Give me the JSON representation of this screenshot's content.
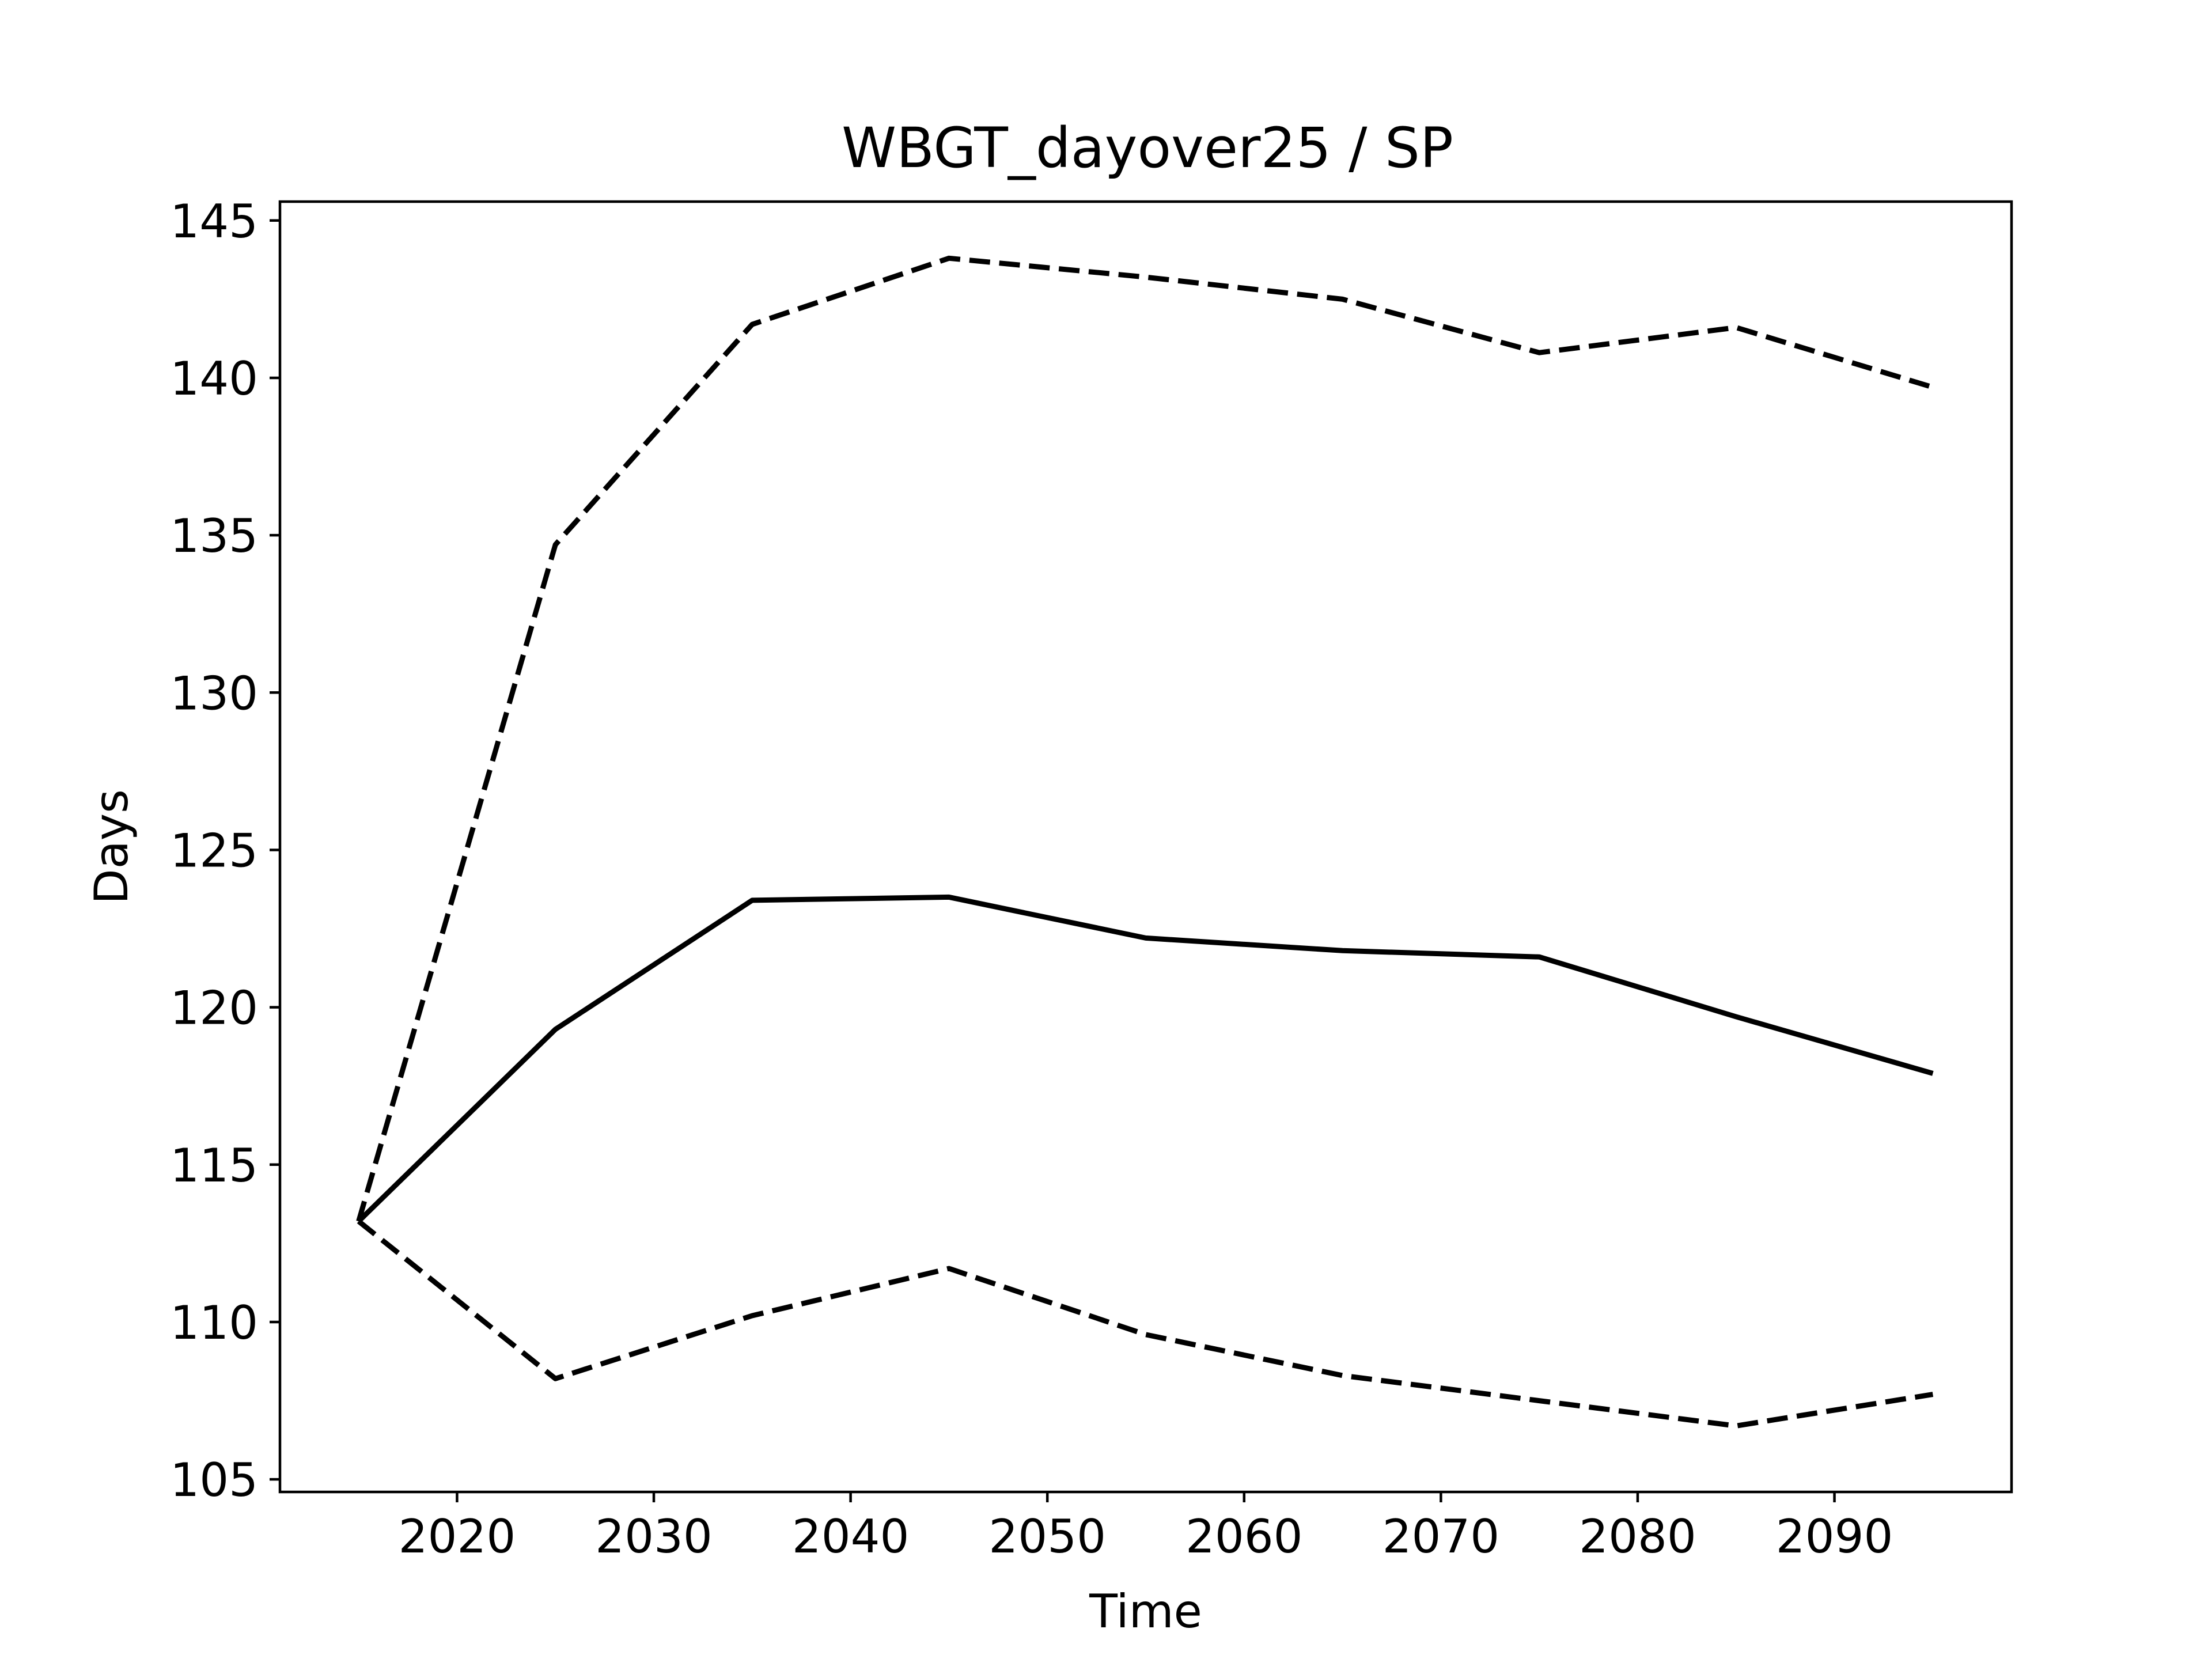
{
  "chart_data": {
    "type": "line",
    "title": "WBGT_dayover25 / SP",
    "xlabel": "Time",
    "ylabel": "Days",
    "xlim": [
      2011,
      2099
    ],
    "ylim": [
      104.6,
      145.6
    ],
    "xticks": [
      2020,
      2030,
      2040,
      2050,
      2060,
      2070,
      2080,
      2090
    ],
    "yticks": [
      105,
      110,
      115,
      120,
      125,
      130,
      135,
      140,
      145
    ],
    "grid": false,
    "legend": "none",
    "x": [
      2015,
      2025,
      2035,
      2045,
      2055,
      2065,
      2075,
      2085,
      2095
    ],
    "series": [
      {
        "style": "dashed",
        "color": "#000000",
        "values": [
          113.2,
          134.7,
          141.7,
          143.8,
          143.2,
          142.5,
          140.8,
          141.6,
          139.7
        ]
      },
      {
        "style": "solid",
        "color": "#000000",
        "values": [
          113.2,
          119.3,
          123.4,
          123.5,
          122.2,
          121.8,
          121.6,
          119.7,
          117.9
        ]
      },
      {
        "style": "dashed",
        "color": "#000000",
        "values": [
          113.2,
          108.2,
          110.2,
          111.7,
          109.6,
          108.3,
          107.5,
          106.7,
          107.7
        ]
      }
    ]
  }
}
